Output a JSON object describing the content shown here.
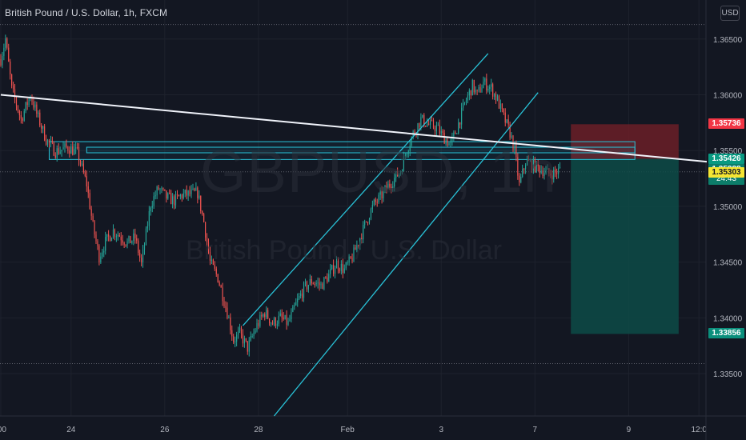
{
  "header": {
    "title": "British Pound / U.S. Dollar, 1h, FXCM",
    "currency_button": "USD"
  },
  "watermark": {
    "symbol_text": "GBPUSD, 1h",
    "name_text": "British Pound / U.S. Dollar"
  },
  "colors": {
    "background": "#131722",
    "grid": "#1e222d",
    "up_candle": "#26a69a",
    "down_candle": "#ef5350",
    "channel": "#29c3d8",
    "trendline": "#f0f3fa",
    "stop_zone": "#6b1f27",
    "target_zone": "#0d4b47",
    "stop_label": "#f23645",
    "entry_label": "#089981",
    "last_label": "#0d7d6a",
    "bid_label": "#f5e532",
    "target_label": "#0b8f7c"
  },
  "chart_data": {
    "type": "candlestick",
    "symbol": "GBPUSD",
    "timeframe": "1h",
    "y_ticks": [
      1.365,
      1.36,
      1.355,
      1.35,
      1.345,
      1.34,
      1.335
    ],
    "y_tick_labels": [
      "1.36500",
      "1.36000",
      "1.35500",
      "1.35000",
      "1.34500",
      "1.34000",
      "1.33500"
    ],
    "ylim": [
      1.3312,
      1.3685
    ],
    "x_tick_labels": [
      ":00",
      "24",
      "26",
      "28",
      "Feb",
      "3",
      "7",
      "9",
      "12:0"
    ],
    "x_tick_bar_index": [
      0,
      45,
      105,
      165,
      222,
      282,
      342,
      402,
      447
    ],
    "visible_bars": 452,
    "close_path": [
      [
        0,
        1.3632
      ],
      [
        3,
        1.365
      ],
      [
        7,
        1.3605
      ],
      [
        13,
        1.3578
      ],
      [
        19,
        1.36
      ],
      [
        23,
        1.3583
      ],
      [
        29,
        1.356
      ],
      [
        35,
        1.3549
      ],
      [
        43,
        1.3553
      ],
      [
        49,
        1.3548
      ],
      [
        55,
        1.352
      ],
      [
        59,
        1.3482
      ],
      [
        63,
        1.3455
      ],
      [
        67,
        1.3468
      ],
      [
        72,
        1.3478
      ],
      [
        76,
        1.3474
      ],
      [
        81,
        1.3467
      ],
      [
        86,
        1.3472
      ],
      [
        90,
        1.3448
      ],
      [
        96,
        1.3502
      ],
      [
        101,
        1.3516
      ],
      [
        106,
        1.3508
      ],
      [
        111,
        1.3505
      ],
      [
        116,
        1.351
      ],
      [
        121,
        1.3511
      ],
      [
        126,
        1.3512
      ],
      [
        130,
        1.3486
      ],
      [
        134,
        1.345
      ],
      [
        139,
        1.3436
      ],
      [
        145,
        1.3405
      ],
      [
        149,
        1.338
      ],
      [
        153,
        1.3386
      ],
      [
        158,
        1.3373
      ],
      [
        164,
        1.3393
      ],
      [
        169,
        1.3405
      ],
      [
        174,
        1.3395
      ],
      [
        179,
        1.34
      ],
      [
        184,
        1.3395
      ],
      [
        189,
        1.3412
      ],
      [
        194,
        1.3426
      ],
      [
        199,
        1.3433
      ],
      [
        205,
        1.3429
      ],
      [
        210,
        1.3438
      ],
      [
        215,
        1.3449
      ],
      [
        220,
        1.3443
      ],
      [
        225,
        1.3454
      ],
      [
        230,
        1.3472
      ],
      [
        235,
        1.349
      ],
      [
        239,
        1.3502
      ],
      [
        243,
        1.3508
      ],
      [
        248,
        1.3518
      ],
      [
        252,
        1.3525
      ],
      [
        256,
        1.3532
      ],
      [
        260,
        1.3551
      ],
      [
        264,
        1.3565
      ],
      [
        269,
        1.3578
      ],
      [
        274,
        1.3573
      ],
      [
        279,
        1.3571
      ],
      [
        283,
        1.3563
      ],
      [
        288,
        1.3555
      ],
      [
        292,
        1.357
      ],
      [
        297,
        1.3592
      ],
      [
        302,
        1.3608
      ],
      [
        305,
        1.36
      ],
      [
        309,
        1.3611
      ],
      [
        314,
        1.3606
      ],
      [
        318,
        1.3595
      ],
      [
        322,
        1.358
      ],
      [
        326,
        1.3566
      ],
      [
        329,
        1.355
      ],
      [
        332,
        1.3519
      ],
      [
        336,
        1.354
      ],
      [
        341,
        1.3537
      ],
      [
        346,
        1.3533
      ],
      [
        351,
        1.3529
      ],
      [
        355,
        1.353
      ],
      [
        358,
        1.3533
      ]
    ],
    "trendline": {
      "x1": 0,
      "y1": 1.36,
      "x2": 452,
      "y2": 1.354
    },
    "channel": {
      "upper": {
        "x1": 155,
        "y1": 1.3393,
        "x2": 312,
        "y2": 1.3637
      },
      "lower": {
        "x1": 175,
        "y1": 1.3312,
        "x2": 344,
        "y2": 1.3602
      }
    },
    "zones": [
      {
        "x1": 31,
        "x2": 406,
        "y_high": 1.3558,
        "y_low": 1.3542
      },
      {
        "x1": 55,
        "x2": 406,
        "y_high": 1.3553,
        "y_low": 1.3548
      }
    ],
    "position": {
      "x1": 365,
      "x2": 434,
      "stop": 1.35736,
      "entry": 1.35426,
      "target": 1.33856
    },
    "price_labels": [
      {
        "role": "stop",
        "price": 1.35736,
        "label": "1.35736"
      },
      {
        "role": "entry",
        "price": 1.35426,
        "label": "1.35426"
      },
      {
        "role": "last",
        "price": 1.35328,
        "label": "1.35328",
        "countdown": "24:43"
      },
      {
        "role": "bid",
        "price": 1.35303,
        "label": "1.35303"
      },
      {
        "role": "target",
        "price": 1.33856,
        "label": "1.33856"
      }
    ],
    "reference_lines": [
      1.3663,
      1.3531,
      1.3359
    ]
  }
}
